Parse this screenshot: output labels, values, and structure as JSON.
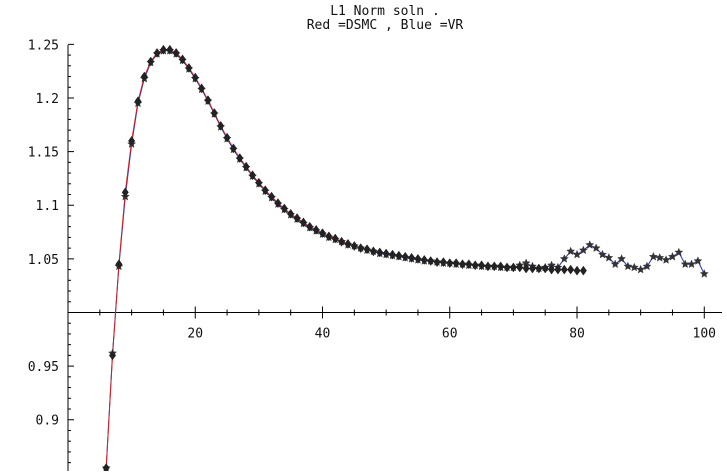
{
  "chart_data": {
    "type": "line",
    "title": [
      "L1 Norm soln .",
      "Red =DSMC , Blue =VR"
    ],
    "xlabel": "",
    "ylabel": "",
    "xlim": [
      0,
      102
    ],
    "ylim": [
      0.855,
      1.255
    ],
    "x_axis_crosses_y": 1.0,
    "grid": false,
    "xticks": [
      20,
      40,
      60,
      80,
      100
    ],
    "xtick_labels": [
      "20",
      "40",
      "60",
      "80",
      "100"
    ],
    "yticks": [
      0.9,
      0.95,
      1.05,
      1.1,
      1.15,
      1.2,
      1.25
    ],
    "ytick_labels": [
      "0.9",
      "0.95",
      "1.05",
      "1.1",
      "1.15",
      "1.2",
      "1.25"
    ],
    "series": [
      {
        "name": "DSMC",
        "color": "#cc2222",
        "marker": "diamond",
        "x": [
          6,
          7,
          8,
          9,
          10,
          11,
          12,
          13,
          14,
          15,
          16,
          17,
          18,
          19,
          20,
          21,
          22,
          23,
          24,
          25,
          26,
          27,
          28,
          29,
          30,
          31,
          32,
          33,
          34,
          35,
          36,
          37,
          38,
          39,
          40,
          41,
          42,
          43,
          44,
          45,
          46,
          47,
          48,
          49,
          50,
          51,
          52,
          53,
          54,
          55,
          56,
          57,
          58,
          59,
          60,
          61,
          62,
          63,
          64,
          65,
          66,
          67,
          68,
          69,
          70,
          71,
          72,
          73,
          74,
          75,
          76,
          77,
          78,
          79,
          80,
          81
        ],
        "y": [
          0.855,
          0.96,
          1.045,
          1.112,
          1.16,
          1.197,
          1.22,
          1.234,
          1.242,
          1.245,
          1.245,
          1.242,
          1.236,
          1.228,
          1.219,
          1.209,
          1.198,
          1.186,
          1.174,
          1.163,
          1.153,
          1.144,
          1.136,
          1.128,
          1.121,
          1.114,
          1.108,
          1.102,
          1.097,
          1.092,
          1.088,
          1.084,
          1.08,
          1.077,
          1.074,
          1.071,
          1.069,
          1.066,
          1.064,
          1.062,
          1.06,
          1.059,
          1.057,
          1.056,
          1.055,
          1.054,
          1.053,
          1.052,
          1.051,
          1.05,
          1.049,
          1.048,
          1.047,
          1.047,
          1.046,
          1.046,
          1.045,
          1.045,
          1.044,
          1.044,
          1.043,
          1.043,
          1.043,
          1.042,
          1.042,
          1.042,
          1.041,
          1.041,
          1.041,
          1.041,
          1.04,
          1.04,
          1.04,
          1.04,
          1.039,
          1.039
        ]
      },
      {
        "name": "VR",
        "color": "#2233bb",
        "marker": "star",
        "x": [
          6,
          7,
          8,
          9,
          10,
          11,
          12,
          13,
          14,
          15,
          16,
          17,
          18,
          19,
          20,
          21,
          22,
          23,
          24,
          25,
          26,
          27,
          28,
          29,
          30,
          31,
          32,
          33,
          34,
          35,
          36,
          37,
          38,
          39,
          40,
          41,
          42,
          43,
          44,
          45,
          46,
          47,
          48,
          49,
          50,
          51,
          52,
          53,
          54,
          55,
          56,
          57,
          58,
          59,
          60,
          61,
          62,
          63,
          64,
          65,
          66,
          67,
          68,
          69,
          70,
          71,
          72,
          73,
          74,
          75,
          76,
          77,
          78,
          79,
          80,
          81,
          82,
          83,
          84,
          85,
          86,
          87,
          88,
          89,
          90,
          91,
          92,
          93,
          94,
          95,
          96,
          97,
          98,
          99,
          100
        ],
        "y": [
          0.855,
          0.962,
          1.043,
          1.108,
          1.157,
          1.195,
          1.218,
          1.233,
          1.241,
          1.244,
          1.244,
          1.241,
          1.235,
          1.227,
          1.218,
          1.208,
          1.197,
          1.185,
          1.173,
          1.162,
          1.152,
          1.143,
          1.135,
          1.127,
          1.12,
          1.113,
          1.107,
          1.101,
          1.096,
          1.091,
          1.087,
          1.083,
          1.079,
          1.076,
          1.073,
          1.07,
          1.068,
          1.066,
          1.063,
          1.062,
          1.06,
          1.058,
          1.057,
          1.055,
          1.054,
          1.053,
          1.052,
          1.051,
          1.05,
          1.049,
          1.048,
          1.048,
          1.047,
          1.046,
          1.046,
          1.045,
          1.045,
          1.044,
          1.044,
          1.043,
          1.043,
          1.043,
          1.042,
          1.042,
          1.042,
          1.044,
          1.046,
          1.043,
          1.041,
          1.042,
          1.044,
          1.042,
          1.05,
          1.057,
          1.054,
          1.058,
          1.063,
          1.06,
          1.054,
          1.051,
          1.045,
          1.05,
          1.043,
          1.042,
          1.04,
          1.043,
          1.052,
          1.051,
          1.049,
          1.052,
          1.056,
          1.045,
          1.045,
          1.048,
          1.036
        ]
      }
    ]
  }
}
